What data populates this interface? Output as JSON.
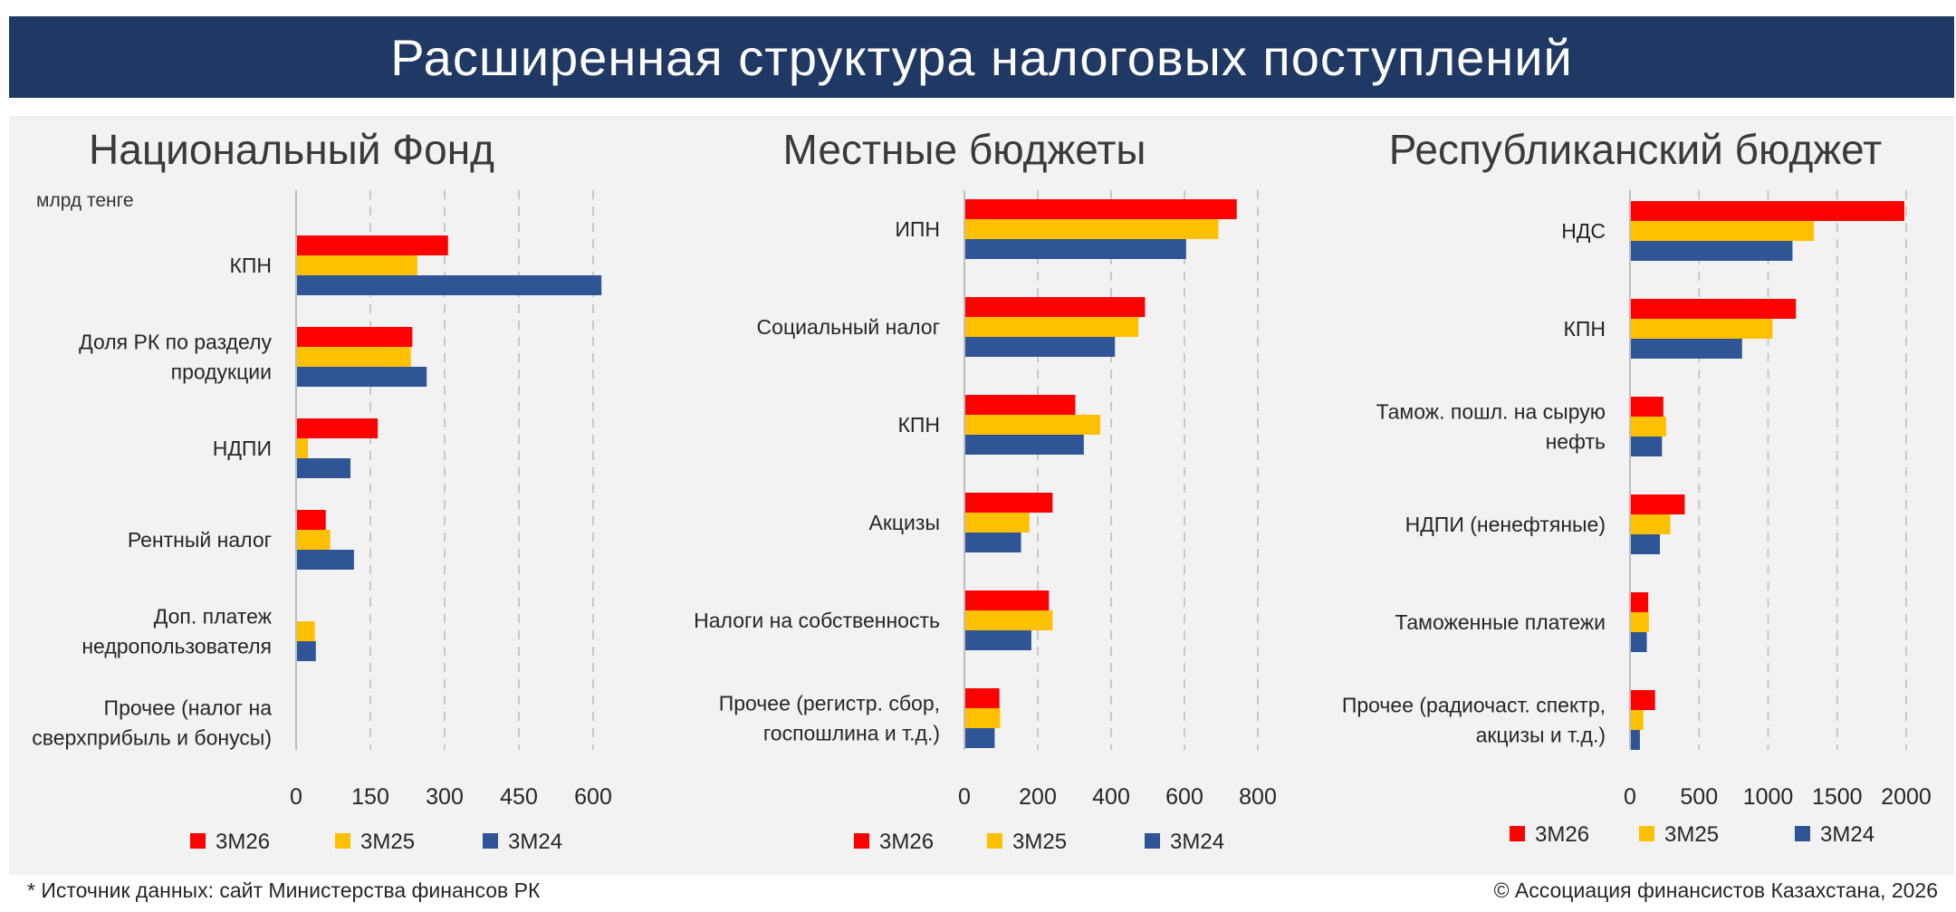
{
  "header": {
    "title": "Расширенная структура налоговых поступлений"
  },
  "footer": {
    "source": "* Источник данных: сайт Министерства финансов РК",
    "copyright": "© Ассоциация финансистов Казахстана, 2026"
  },
  "colors": {
    "banner": "#1f3864",
    "3M26": "#ff0000",
    "3M25": "#ffc000",
    "3M24": "#2f5597"
  },
  "chart_data": [
    {
      "type": "bar",
      "orientation": "horizontal",
      "title": "Национальный Фонд",
      "unit_label": "млрд тенге",
      "categories": [
        "КПН",
        "Доля РК по разделу продукции",
        "НДПИ",
        "Рентный налог",
        "Доп. платеж недропользователя",
        "Прочее (налог на сверхприбыль и бонусы)"
      ],
      "category_lines": [
        [
          "КПН"
        ],
        [
          "Доля РК по разделу",
          "продукции"
        ],
        [
          "НДПИ"
        ],
        [
          "Рентный налог"
        ],
        [
          "Доп. платеж",
          "недропользователя"
        ],
        [
          "Прочее (налог на",
          "сверхприбыль и бонусы)"
        ]
      ],
      "series": [
        {
          "name": "3M26",
          "values": [
            305,
            233,
            163,
            58,
            0,
            0
          ]
        },
        {
          "name": "3M25",
          "values": [
            243,
            230,
            22,
            67,
            36,
            0
          ]
        },
        {
          "name": "3M24",
          "values": [
            615,
            262,
            108,
            115,
            38,
            0
          ]
        }
      ],
      "xlim": [
        0,
        600
      ],
      "xticks": [
        0,
        150,
        300,
        450,
        600
      ],
      "grid": true,
      "legend": "bottom"
    },
    {
      "type": "bar",
      "orientation": "horizontal",
      "title": "Местные бюджеты",
      "categories": [
        "ИПН",
        "Социальный налог",
        "КПН",
        "Акцизы",
        "Налоги на собственность",
        "Прочее (регистр. сбор, госпошлина и т.д.)"
      ],
      "category_lines": [
        [
          "ИПН"
        ],
        [
          "Социальный налог"
        ],
        [
          "КПН"
        ],
        [
          "Акцизы"
        ],
        [
          "Налоги на собственность"
        ],
        [
          "Прочее (регистр. сбор,",
          "госпошлина и т.д.)"
        ]
      ],
      "series": [
        {
          "name": "3M26",
          "values": [
            740,
            490,
            300,
            238,
            228,
            93
          ]
        },
        {
          "name": "3M25",
          "values": [
            690,
            472,
            368,
            175,
            238,
            95
          ]
        },
        {
          "name": "3M24",
          "values": [
            602,
            408,
            323,
            152,
            180,
            80
          ]
        }
      ],
      "xlim": [
        0,
        800
      ],
      "xticks": [
        0,
        200,
        400,
        600,
        800
      ],
      "grid": true,
      "legend": "bottom"
    },
    {
      "type": "bar",
      "orientation": "horizontal",
      "title": "Республиканский бюджет",
      "categories": [
        "НДС",
        "КПН",
        "Тамож. пошл. на сырую нефть",
        "НДПИ (ненефтяные)",
        "Таможенные платежи",
        "Прочее (радиочаст. спектр, акцизы и т.д.)"
      ],
      "category_lines": [
        [
          "НДС"
        ],
        [
          "КПН"
        ],
        [
          "Тамож. пошл. на сырую",
          "нефть"
        ],
        [
          "НДПИ (ненефтяные)"
        ],
        [
          "Таможенные платежи"
        ],
        [
          "Прочее (радиочаст. спектр,",
          "акцизы и т.д.)"
        ]
      ],
      "series": [
        {
          "name": "3M26",
          "values": [
            1980,
            1195,
            235,
            390,
            125,
            175
          ]
        },
        {
          "name": "3M25",
          "values": [
            1325,
            1025,
            255,
            285,
            130,
            90
          ]
        },
        {
          "name": "3M24",
          "values": [
            1170,
            805,
            225,
            210,
            115,
            65
          ]
        }
      ],
      "xlim": [
        0,
        2000
      ],
      "xticks": [
        0,
        500,
        1000,
        1500,
        2000
      ],
      "grid": true,
      "legend": "bottom"
    }
  ]
}
